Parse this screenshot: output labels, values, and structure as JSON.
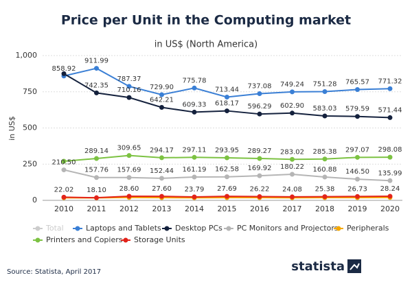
{
  "chart_data": {
    "type": "line",
    "title": "Price per Unit in the Computing market",
    "subtitle": "in US$ (North America)",
    "y_label": "in US$",
    "source": "Source: Statista, April 2017",
    "brand": "statista",
    "categories": [
      "2010",
      "2011",
      "2012",
      "2013",
      "2014",
      "2015",
      "2016",
      "2017",
      "2018",
      "2019",
      "2020"
    ],
    "ylim": [
      0,
      1000
    ],
    "yticks": [
      0,
      250,
      500,
      750,
      {
        "value": 1000,
        "label": "1,000"
      }
    ],
    "grid": true,
    "series": [
      {
        "name": "Total",
        "color": "#cccccc",
        "visible": false,
        "values": [
          null,
          null,
          null,
          null,
          null,
          null,
          null,
          null,
          null,
          null,
          null
        ]
      },
      {
        "name": "Laptops and Tablets",
        "color": "#3a7fd5",
        "values": [
          858.92,
          911.99,
          787.37,
          729.9,
          775.78,
          713.44,
          737.08,
          749.24,
          751.28,
          765.57,
          771.32
        ],
        "value_labels": [
          "858.92",
          "911.99",
          "787.37",
          "729.90",
          "775.78",
          "713.44",
          "737.08",
          "749.24",
          "751.28",
          "765.57",
          "771.32"
        ]
      },
      {
        "name": "Desktop PCs",
        "color": "#14213d",
        "values": [
          875,
          742.35,
          710.16,
          642.21,
          609.33,
          618.17,
          596.29,
          602.9,
          583.03,
          579.59,
          571.44
        ],
        "value_labels": [
          null,
          "742.35",
          "710.16",
          "642.21",
          "609.33",
          "618.17",
          "596.29",
          "602.90",
          "583.03",
          "579.59",
          "571.44"
        ]
      },
      {
        "name": "PC Monitors and Projectors",
        "color": "#b5b5b5",
        "values": [
          210.5,
          157.76,
          157.69,
          152.44,
          161.19,
          162.58,
          169.92,
          180.22,
          160.88,
          146.5,
          135.99
        ],
        "value_labels": [
          "210.50",
          "157.76",
          "157.69",
          "152.44",
          "161.19",
          "162.58",
          "169.92",
          "180.22",
          "160.88",
          "146.50",
          "135.99"
        ]
      },
      {
        "name": "Peripherals",
        "color": "#f5a800",
        "values": [
          18,
          17,
          20,
          19,
          18,
          19,
          19,
          18,
          19,
          19,
          20
        ]
      },
      {
        "name": "Printers and Copiers",
        "color": "#7cc242",
        "values": [
          270,
          289.14,
          309.65,
          294.17,
          297.11,
          293.95,
          289.27,
          283.02,
          285.38,
          297.07,
          298.08
        ],
        "value_labels": [
          null,
          "289.14",
          "309.65",
          "294.17",
          "297.11",
          "293.95",
          "289.27",
          "283.02",
          "285.38",
          "297.07",
          "298.08"
        ]
      },
      {
        "name": "Storage Units",
        "color": "#e2231a",
        "values": [
          22.02,
          18.1,
          28.6,
          27.6,
          23.79,
          27.69,
          26.22,
          24.08,
          25.38,
          26.73,
          28.24
        ],
        "value_labels": [
          "22.02",
          "18.10",
          "28.60",
          "27.60",
          "23.79",
          "27.69",
          "26.22",
          "24.08",
          "25.38",
          "26.73",
          "28.24"
        ]
      }
    ]
  }
}
